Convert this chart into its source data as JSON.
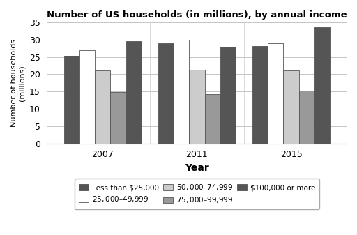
{
  "title": "Number of US households (in millions), by annual income",
  "xlabel": "Year",
  "ylabel": "Number of households\n(millions)",
  "years": [
    "2007",
    "2011",
    "2015"
  ],
  "categories": [
    "Less than $25,000",
    "$25,000–$49,999",
    "$50,000–$74,999",
    "$75,000–$99,999",
    "$100,000 or more"
  ],
  "values": {
    "Less than $25,000": [
      25.3,
      29.0,
      28.1
    ],
    "$25,000–$49,999": [
      27.0,
      30.0,
      29.0
    ],
    "$50,000–$74,999": [
      21.0,
      21.3,
      21.0
    ],
    "$75,000–$99,999": [
      14.8,
      14.2,
      15.3
    ],
    "$100,000 or more": [
      29.5,
      28.0,
      33.5
    ]
  },
  "colors": [
    "#555555",
    "#ffffff",
    "#cccccc",
    "#999999",
    "#555555"
  ],
  "bar_edge_color": "#555555",
  "ylim": [
    0,
    35
  ],
  "yticks": [
    0,
    5,
    10,
    15,
    20,
    25,
    30,
    35
  ],
  "figsize": [
    5.12,
    3.37
  ],
  "dpi": 100,
  "legend_colors": [
    "#555555",
    "#ffffff",
    "#cccccc",
    "#999999",
    "#555555"
  ]
}
